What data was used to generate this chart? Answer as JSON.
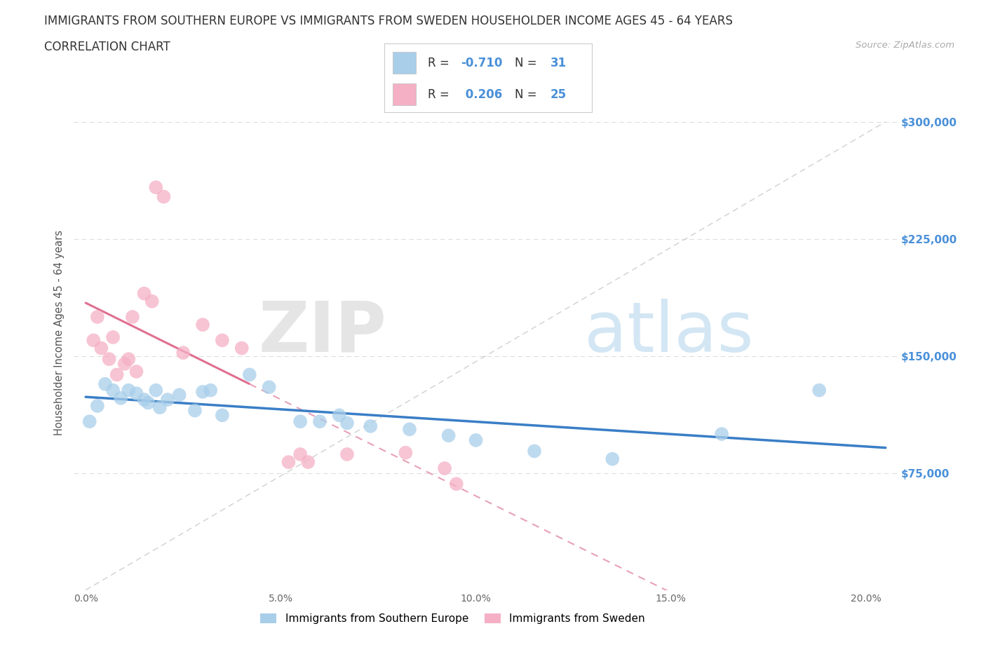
{
  "title_line1": "IMMIGRANTS FROM SOUTHERN EUROPE VS IMMIGRANTS FROM SWEDEN HOUSEHOLDER INCOME AGES 45 - 64 YEARS",
  "title_line2": "CORRELATION CHART",
  "source_text": "Source: ZipAtlas.com",
  "ylabel": "Householder Income Ages 45 - 64 years",
  "watermark_zip": "ZIP",
  "watermark_atlas": "atlas",
  "blue_r": "-0.710",
  "blue_n": "31",
  "pink_r": "0.206",
  "pink_n": "25",
  "blue_fill": "#A8CEEA",
  "pink_fill": "#F5B0C5",
  "blue_line": "#3A7EC6",
  "pink_line": "#E07090",
  "pink_dash": "#E8A0B8",
  "gray_dash": "#D0D0D0",
  "ytick_color": "#4A90D9",
  "blue_scatter": [
    [
      0.001,
      108000
    ],
    [
      0.003,
      118000
    ],
    [
      0.005,
      132000
    ],
    [
      0.007,
      128000
    ],
    [
      0.009,
      123000
    ],
    [
      0.011,
      128000
    ],
    [
      0.013,
      126000
    ],
    [
      0.015,
      122000
    ],
    [
      0.016,
      120000
    ],
    [
      0.018,
      128000
    ],
    [
      0.019,
      117000
    ],
    [
      0.021,
      122000
    ],
    [
      0.024,
      125000
    ],
    [
      0.028,
      115000
    ],
    [
      0.03,
      127000
    ],
    [
      0.032,
      128000
    ],
    [
      0.035,
      112000
    ],
    [
      0.042,
      138000
    ],
    [
      0.047,
      130000
    ],
    [
      0.055,
      108000
    ],
    [
      0.06,
      108000
    ],
    [
      0.065,
      112000
    ],
    [
      0.067,
      107000
    ],
    [
      0.073,
      105000
    ],
    [
      0.083,
      103000
    ],
    [
      0.093,
      99000
    ],
    [
      0.1,
      96000
    ],
    [
      0.115,
      89000
    ],
    [
      0.135,
      84000
    ],
    [
      0.163,
      100000
    ],
    [
      0.188,
      128000
    ]
  ],
  "pink_scatter": [
    [
      0.002,
      160000
    ],
    [
      0.003,
      175000
    ],
    [
      0.004,
      155000
    ],
    [
      0.006,
      148000
    ],
    [
      0.007,
      162000
    ],
    [
      0.008,
      138000
    ],
    [
      0.01,
      145000
    ],
    [
      0.011,
      148000
    ],
    [
      0.012,
      175000
    ],
    [
      0.013,
      140000
    ],
    [
      0.015,
      190000
    ],
    [
      0.017,
      185000
    ],
    [
      0.018,
      258000
    ],
    [
      0.02,
      252000
    ],
    [
      0.025,
      152000
    ],
    [
      0.03,
      170000
    ],
    [
      0.035,
      160000
    ],
    [
      0.04,
      155000
    ],
    [
      0.052,
      82000
    ],
    [
      0.055,
      87000
    ],
    [
      0.057,
      82000
    ],
    [
      0.067,
      87000
    ],
    [
      0.082,
      88000
    ],
    [
      0.092,
      78000
    ],
    [
      0.095,
      68000
    ]
  ],
  "xlim": [
    -0.003,
    0.208
  ],
  "ylim": [
    0,
    330000
  ],
  "ytick_vals": [
    0,
    75000,
    150000,
    225000,
    300000
  ],
  "ytick_labels": [
    "",
    "$75,000",
    "$150,000",
    "$225,000",
    "$300,000"
  ],
  "xtick_vals": [
    0.0,
    0.05,
    0.1,
    0.15,
    0.2
  ],
  "xtick_labels": [
    "0.0%",
    "5.0%",
    "10.0%",
    "15.0%",
    "20.0%"
  ],
  "background": "#FFFFFF",
  "scatter_size": 200,
  "scatter_alpha": 0.75
}
